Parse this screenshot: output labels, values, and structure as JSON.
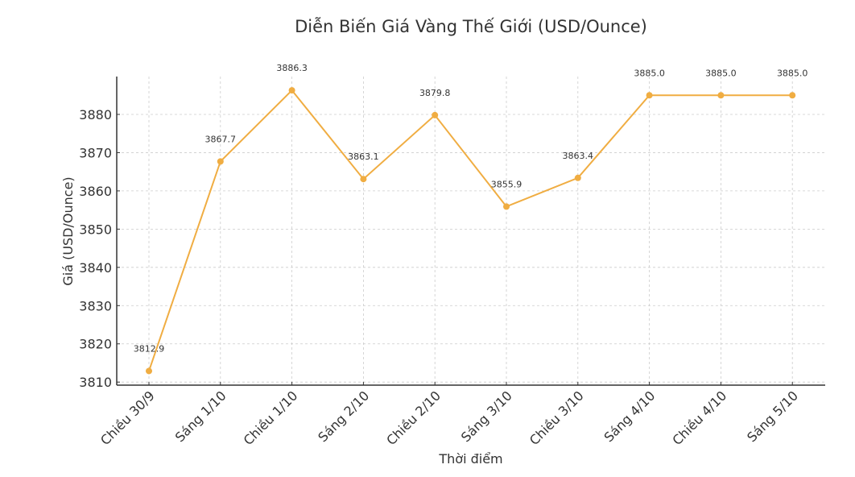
{
  "chart_data": {
    "type": "line",
    "title": "Diễn Biến Giá Vàng Thế Giới (USD/Ounce)",
    "xlabel": "Thời điểm",
    "ylabel": "Giá (USD/Ounce)",
    "categories": [
      "Chiều 30/9",
      "Sáng 1/10",
      "Chiều 1/10",
      "Sáng 2/10",
      "Chiều 2/10",
      "Sáng 3/10",
      "Chiều 3/10",
      "Sáng 4/10",
      "Chiều 4/10",
      "Sáng 5/10"
    ],
    "values": [
      3812.9,
      3867.7,
      3886.3,
      3863.1,
      3879.8,
      3855.9,
      3863.4,
      3885.0,
      3885.0,
      3885.0
    ],
    "data_labels": [
      "3812.9",
      "3867.7",
      "3886.3",
      "3863.1",
      "3879.8",
      "3855.9",
      "3863.4",
      "3885.0",
      "3885.0",
      "3885.0"
    ],
    "ylim": [
      3809.2,
      3889.9
    ],
    "yticks": [
      3810,
      3820,
      3830,
      3840,
      3850,
      3860,
      3870,
      3880
    ],
    "grid": true,
    "grid_style": "dashed",
    "marker": "circle",
    "line_color": "#F0AD42",
    "legend": "none"
  }
}
